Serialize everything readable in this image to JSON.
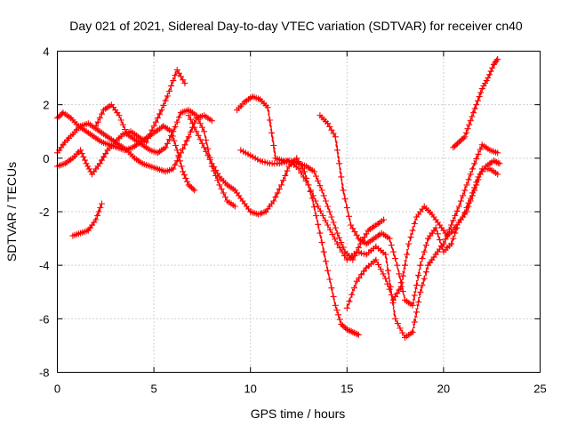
{
  "chart_data": {
    "type": "scatter",
    "title": "Day 021 of 2021, Sidereal Day-to-day VTEC variation (SDTVAR) for receiver cn40",
    "xlabel": "GPS time / hours",
    "ylabel": "SDTVAR / TECUs",
    "xlim": [
      0,
      25
    ],
    "ylim": [
      -8,
      4
    ],
    "x_ticks": [
      "0",
      "5",
      "10",
      "15",
      "20",
      "25"
    ],
    "y_ticks": [
      "4",
      "2",
      "0",
      "-2",
      "-4",
      "-6",
      "-8"
    ],
    "grid": true,
    "marker": "plus",
    "color": "#ff0000",
    "series": [
      {
        "x": [
          0.0,
          0.3,
          0.7,
          1.1,
          1.5,
          1.9,
          2.3,
          2.7,
          3.1,
          3.5,
          3.9,
          4.3,
          4.7,
          5.1,
          5.5,
          5.9,
          6.2,
          6.5,
          6.8,
          7.1
        ],
        "y": [
          1.5,
          1.7,
          1.5,
          1.2,
          1.0,
          0.8,
          0.6,
          0.5,
          0.4,
          0.3,
          0.4,
          0.6,
          0.8,
          1.0,
          1.2,
          1.0,
          0.3,
          -0.5,
          -1.0,
          -1.2
        ]
      },
      {
        "x": [
          0.0,
          0.4,
          0.8,
          1.2,
          1.6,
          2.0,
          2.4,
          2.8,
          3.2,
          3.6,
          4.0,
          4.4,
          4.8,
          5.2,
          5.6,
          6.0,
          6.4,
          6.8,
          7.2,
          7.6,
          8.0
        ],
        "y": [
          0.2,
          0.6,
          0.9,
          1.2,
          1.3,
          1.1,
          0.9,
          0.7,
          0.5,
          0.3,
          0.0,
          -0.2,
          -0.3,
          -0.4,
          -0.5,
          -0.4,
          0.2,
          0.8,
          1.5,
          1.6,
          1.4
        ]
      },
      {
        "x": [
          0.0,
          0.4,
          0.8,
          1.2,
          1.5,
          1.8,
          2.2,
          2.6,
          3.0,
          3.4,
          3.8,
          4.2,
          4.6,
          5.0,
          5.4,
          5.8,
          6.2,
          6.6
        ],
        "y": [
          -0.3,
          -0.2,
          0.0,
          0.3,
          -0.2,
          -0.6,
          -0.2,
          0.3,
          0.6,
          0.9,
          1.0,
          0.8,
          0.6,
          1.2,
          1.8,
          2.5,
          3.3,
          2.8
        ]
      },
      {
        "x": [
          0.8,
          1.2,
          1.6,
          2.0,
          2.3
        ],
        "y": [
          -2.9,
          -2.8,
          -2.7,
          -2.3,
          -1.7
        ]
      },
      {
        "x": [
          2.0,
          2.4,
          2.8,
          3.2,
          3.6,
          4.0,
          4.4,
          4.8,
          5.2,
          5.6,
          6.0,
          6.4,
          6.8,
          7.2,
          7.6,
          8.0,
          8.4,
          8.8,
          9.2
        ],
        "y": [
          1.2,
          1.8,
          2.0,
          1.6,
          0.9,
          0.7,
          0.5,
          0.3,
          0.2,
          0.4,
          1.0,
          1.7,
          1.8,
          1.6,
          1.0,
          -0.3,
          -1.0,
          -1.6,
          -1.8
        ]
      },
      {
        "x": [
          6.8,
          7.2,
          7.6,
          8.0,
          8.4,
          8.8,
          9.2,
          9.6,
          10.0,
          10.4,
          10.8,
          11.2,
          11.6,
          12.0,
          12.4,
          12.8,
          13.2,
          13.6,
          14.0,
          14.4,
          14.7,
          15.0,
          15.3,
          15.6
        ],
        "y": [
          1.6,
          1.0,
          0.4,
          -0.2,
          -0.7,
          -1.0,
          -1.2,
          -1.6,
          -2.0,
          -2.1,
          -2.0,
          -1.6,
          -1.0,
          -0.3,
          0.0,
          -0.5,
          -1.5,
          -2.8,
          -4.2,
          -5.5,
          -6.2,
          -6.4,
          -6.5,
          -6.6
        ]
      },
      {
        "x": [
          9.3,
          9.7,
          10.1,
          10.5,
          10.9,
          11.3,
          11.7,
          12.1,
          12.5,
          12.9,
          13.3,
          13.7,
          14.1,
          14.5,
          14.9,
          15.3,
          15.7,
          16.1,
          16.5,
          16.9
        ],
        "y": [
          1.8,
          2.1,
          2.3,
          2.2,
          1.9,
          0.0,
          -0.1,
          -0.1,
          -0.2,
          -0.3,
          -0.5,
          -1.2,
          -2.0,
          -2.8,
          -3.5,
          -3.8,
          -3.2,
          -2.7,
          -2.5,
          -2.3
        ]
      },
      {
        "x": [
          9.5,
          10.0,
          10.5,
          11.0,
          11.5,
          12.0,
          12.5,
          13.0,
          13.5,
          14.0,
          14.5,
          15.0,
          15.5,
          16.0,
          16.5,
          17.0,
          17.5,
          18.0,
          18.4,
          18.8,
          19.2,
          19.6,
          20.0,
          20.4,
          20.8,
          21.2,
          21.6,
          22.0,
          22.4,
          22.8
        ],
        "y": [
          0.3,
          0.1,
          -0.1,
          -0.2,
          -0.2,
          -0.1,
          -0.4,
          -1.0,
          -1.8,
          -2.5,
          -3.2,
          -3.8,
          -3.5,
          -3.6,
          -3.3,
          -3.6,
          -6.0,
          -6.7,
          -6.5,
          -5.0,
          -4.0,
          -3.6,
          -3.2,
          -2.5,
          -1.8,
          -1.0,
          -0.2,
          0.5,
          0.3,
          0.2
        ]
      },
      {
        "x": [
          13.6,
          14.0,
          14.4,
          14.8,
          15.2,
          15.6,
          16.0,
          16.4,
          16.8,
          17.2,
          17.6,
          18.0,
          18.4,
          18.8,
          19.2,
          19.6,
          20.0,
          20.4,
          20.8,
          21.2,
          21.6,
          22.0,
          22.4,
          22.8
        ],
        "y": [
          1.6,
          1.3,
          0.8,
          -1.2,
          -2.5,
          -3.0,
          -3.2,
          -3.0,
          -2.8,
          -3.0,
          -4.0,
          -5.3,
          -5.5,
          -4.0,
          -3.0,
          -2.6,
          -3.5,
          -3.2,
          -2.4,
          -2.0,
          -1.2,
          -0.4,
          -0.4,
          -0.6
        ]
      },
      {
        "x": [
          15.0,
          15.5,
          16.0,
          16.5,
          17.0,
          17.4,
          17.8,
          18.2,
          18.6,
          19.0,
          19.4,
          19.8,
          20.2,
          20.6,
          21.0,
          21.4,
          21.8,
          22.2,
          22.6,
          22.9
        ],
        "y": [
          -5.6,
          -4.6,
          -4.1,
          -3.8,
          -4.5,
          -5.3,
          -4.8,
          -3.2,
          -2.2,
          -1.8,
          -2.1,
          -2.5,
          -2.9,
          -2.6,
          -2.2,
          -1.5,
          -0.7,
          -0.3,
          -0.1,
          -0.2
        ]
      },
      {
        "x": [
          20.5,
          20.8,
          21.1,
          21.4,
          21.7,
          22.0,
          22.3,
          22.6,
          22.8
        ],
        "y": [
          0.4,
          0.6,
          0.8,
          1.4,
          2.0,
          2.6,
          3.0,
          3.5,
          3.7
        ]
      }
    ]
  }
}
